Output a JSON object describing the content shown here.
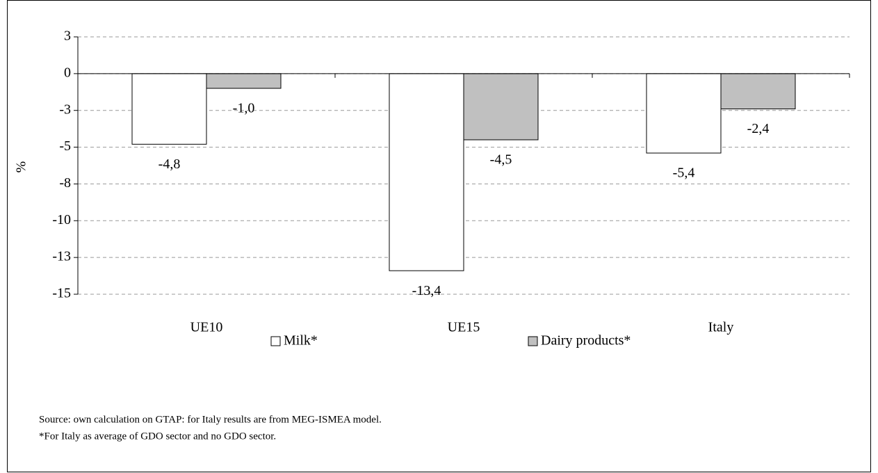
{
  "chart_data": {
    "type": "bar",
    "categories": [
      "UE10",
      "UE15",
      "Italy"
    ],
    "series": [
      {
        "name": "Milk*",
        "color": "#ffffff",
        "values": [
          -4.8,
          -13.4,
          -5.4
        ],
        "value_labels": [
          "-4,8",
          "-13,4",
          "-5,4"
        ]
      },
      {
        "name": "Dairy products*",
        "color": "#c0c0c0",
        "values": [
          -1.0,
          -4.5,
          -2.4
        ],
        "value_labels": [
          "-1,0",
          "-4,5",
          "-2,4"
        ]
      }
    ],
    "ylabel": "%",
    "ylim": [
      -15,
      2.5
    ],
    "yticks": [
      {
        "value": 2.5,
        "label": "3"
      },
      0,
      {
        "value": -2.5,
        "label": "-3"
      },
      -5,
      {
        "value": -7.5,
        "label": "-8"
      },
      -10,
      {
        "value": -12.5,
        "label": "-13"
      },
      -15
    ],
    "grid": true,
    "notes": [
      "Source: own calculation on GTAP: for Italy results are from MEG-ISMEA model.",
      "*For Italy as average of GDO sector and no GDO sector."
    ]
  }
}
